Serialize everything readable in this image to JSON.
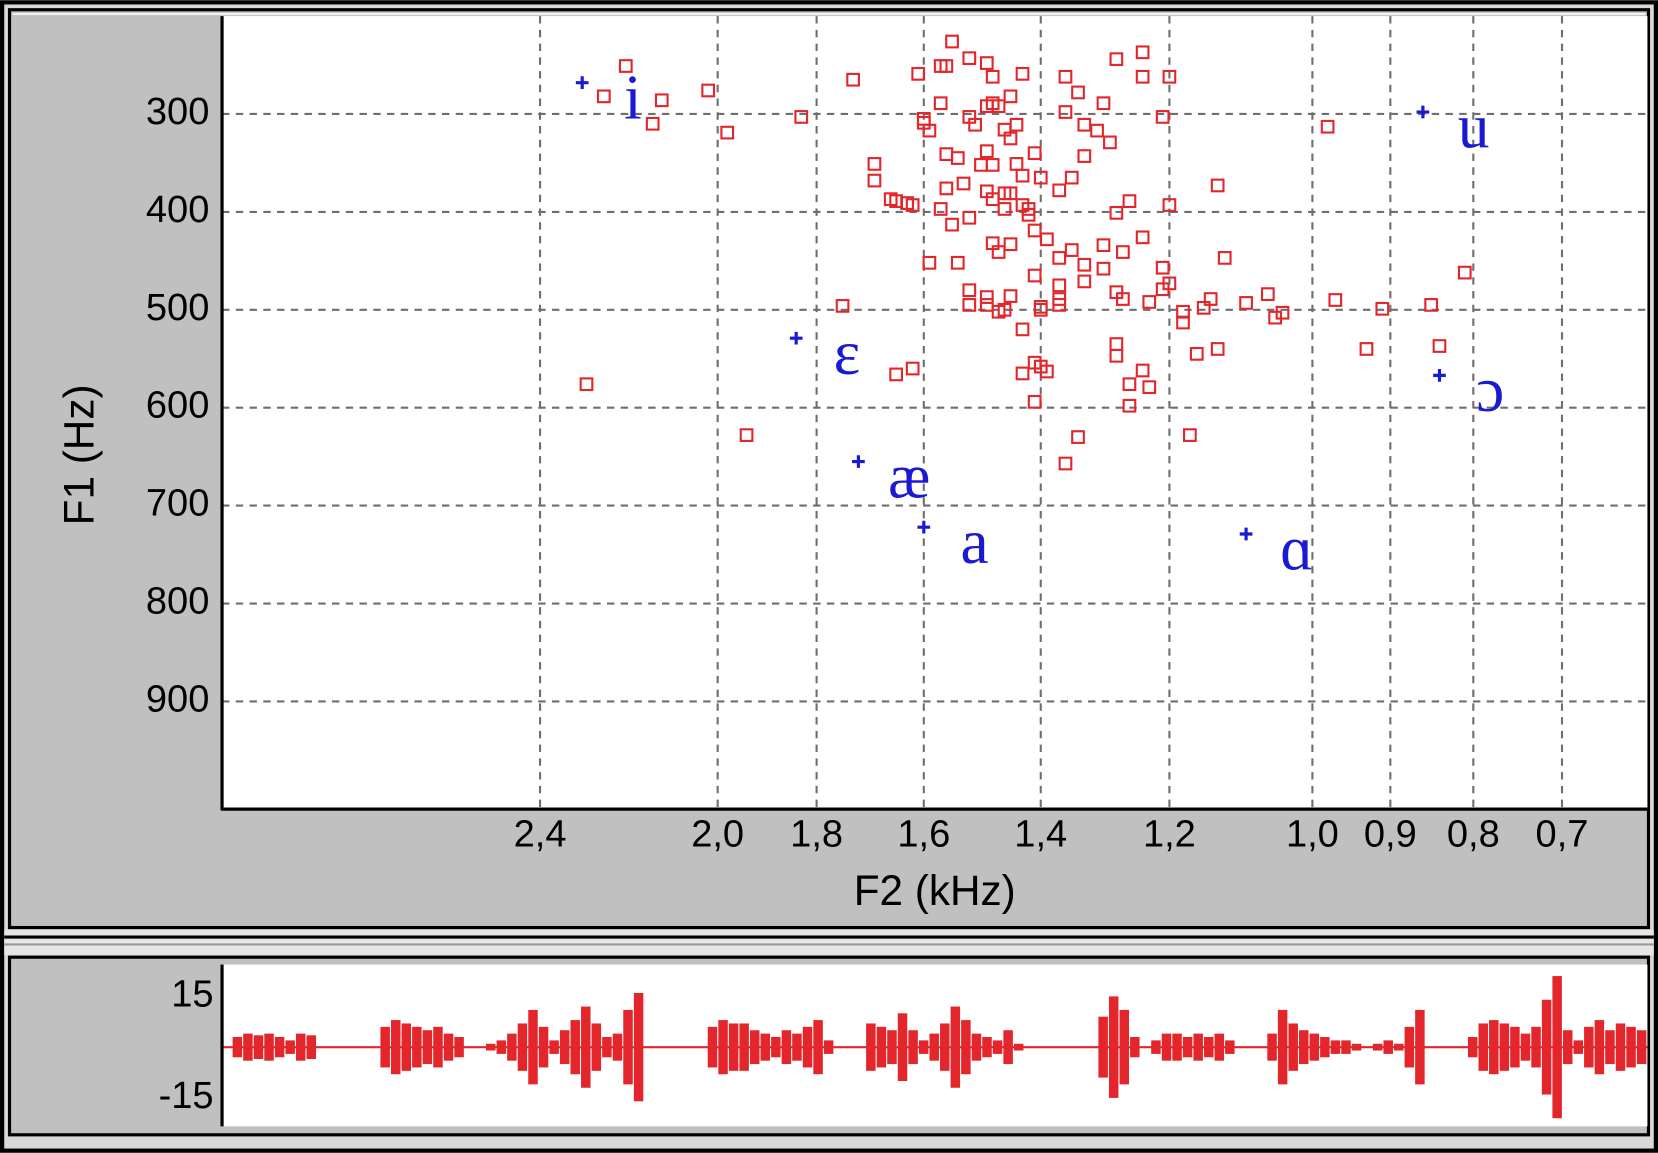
{
  "chart_data": [
    {
      "type": "scatter",
      "x_label": "F2 (kHz)",
      "y_label": "F1 (Hz)",
      "xscale": "mel",
      "xlim": [
        3.27,
        0.61
      ],
      "xticks": [
        {
          "value": 2.4,
          "label": "2,4"
        },
        {
          "value": 2.0,
          "label": "2,0"
        },
        {
          "value": 1.8,
          "label": "1,8"
        },
        {
          "value": 1.6,
          "label": "1,6"
        },
        {
          "value": 1.4,
          "label": "1,4"
        },
        {
          "value": 1.2,
          "label": "1,2"
        },
        {
          "value": 1.0,
          "label": "1,0"
        },
        {
          "value": 0.9,
          "label": "0,9"
        },
        {
          "value": 0.8,
          "label": "0,8"
        },
        {
          "value": 0.7,
          "label": "0,7"
        }
      ],
      "ylim": [
        1010,
        200
      ],
      "yticks": [
        300,
        400,
        500,
        600,
        700,
        800,
        900
      ],
      "grid": true,
      "series": [
        {
          "color": "#e3262b",
          "marker": "square",
          "x": [
            1.55,
            1.52,
            1.57,
            1.56,
            1.49,
            1.43,
            1.48,
            1.28,
            1.24,
            1.24,
            1.2,
            1.36,
            1.61,
            1.73,
            2.2,
            2.25,
            2.12,
            2.14,
            2.02,
            1.34,
            1.45,
            1.3,
            1.36,
            1.21,
            0.98,
            1.83,
            1.98,
            1.6,
            1.59,
            1.57,
            1.52,
            1.49,
            1.47,
            1.51,
            1.46,
            1.44,
            1.45,
            1.33,
            1.31,
            1.29,
            1.48,
            1.6,
            1.49,
            1.56,
            1.54,
            1.48,
            1.5,
            1.44,
            1.41,
            1.33,
            1.35,
            1.43,
            1.4,
            1.56,
            1.53,
            1.49,
            1.48,
            1.46,
            1.45,
            1.43,
            1.42,
            1.46,
            1.52,
            1.55,
            1.57,
            1.69,
            1.69,
            1.66,
            1.65,
            1.63,
            1.62,
            1.13,
            1.2,
            1.26,
            1.28,
            1.37,
            1.42,
            1.48,
            1.47,
            1.45,
            1.41,
            1.39,
            1.35,
            1.3,
            1.27,
            1.24,
            1.21,
            1.2,
            1.33,
            1.37,
            1.3,
            1.33,
            1.41,
            1.54,
            1.59,
            1.12,
            1.37,
            1.37,
            1.37,
            1.28,
            1.27,
            1.23,
            1.21,
            1.18,
            1.14,
            1.15,
            1.09,
            1.06,
            1.04,
            1.05,
            0.97,
            0.91,
            0.85,
            0.81,
            1.4,
            1.4,
            1.45,
            1.49,
            1.52,
            1.52,
            1.49,
            1.47,
            1.46,
            1.43,
            1.18,
            1.13,
            1.16,
            1.28,
            1.28,
            1.24,
            0.93,
            0.84,
            1.41,
            1.4,
            1.39,
            1.43,
            1.41,
            1.26,
            1.26,
            1.23,
            1.62,
            1.65,
            1.34,
            1.36,
            1.17,
            1.94,
            1.75,
            2.29
          ],
          "y": [
            226,
            243,
            251,
            251,
            248,
            259,
            262,
            244,
            237,
            262,
            262,
            262,
            259,
            265,
            251,
            282,
            286,
            310,
            276,
            278,
            282,
            289,
            298,
            303,
            313,
            303,
            319,
            309,
            317,
            289,
            303,
            292,
            292,
            311,
            316,
            311,
            325,
            311,
            317,
            329,
            289,
            305,
            338,
            341,
            345,
            352,
            352,
            351,
            340,
            343,
            365,
            363,
            365,
            376,
            371,
            379,
            387,
            381,
            381,
            393,
            403,
            397,
            406,
            413,
            397,
            351,
            368,
            387,
            389,
            391,
            393,
            373,
            393,
            389,
            401,
            378,
            397,
            432,
            441,
            433,
            419,
            428,
            439,
            434,
            441,
            426,
            457,
            473,
            454,
            447,
            458,
            471,
            465,
            452,
            452,
            447,
            475,
            489,
            495,
            482,
            489,
            492,
            479,
            502,
            489,
            498,
            493,
            484,
            503,
            508,
            490,
            499,
            495,
            462,
            500,
            497,
            486,
            487,
            480,
            495,
            495,
            502,
            500,
            520,
            513,
            540,
            545,
            535,
            547,
            562,
            540,
            537,
            554,
            558,
            563,
            565,
            594,
            576,
            598,
            579,
            560,
            566,
            630,
            657,
            628,
            628,
            496,
            576
          ]
        },
        {
          "color": "#1a1ad2",
          "marker": "cross",
          "x": [
            2.3,
            0.86,
            1.84,
            1.72,
            1.6,
            1.09,
            0.84
          ],
          "y": [
            268,
            298,
            529,
            655,
            722,
            729,
            567
          ],
          "labels": [
            "i",
            "u",
            "ɛ",
            "æ",
            "a",
            "ɑ",
            "ɔ"
          ]
        }
      ]
    },
    {
      "type": "waveform",
      "color": "#e3262b",
      "ylim": [
        -23.4,
        24.4
      ],
      "yticks": [
        15,
        -15
      ],
      "values": [
        0,
        3,
        4,
        3.5,
        4,
        3,
        2,
        4,
        3.5,
        0,
        0,
        0,
        0,
        0,
        0,
        6,
        8,
        7,
        6,
        5,
        6,
        4,
        3,
        0,
        0,
        1,
        2,
        4,
        7,
        11,
        6,
        2,
        5,
        8,
        12,
        7,
        3,
        4,
        11,
        16,
        0,
        0,
        0,
        0,
        0,
        0,
        6,
        8,
        7,
        7,
        5,
        4,
        3,
        5,
        4,
        6,
        8,
        2,
        0,
        0,
        0,
        7,
        6,
        5,
        10,
        5,
        2,
        4,
        7,
        12,
        8,
        4,
        3,
        2,
        5,
        1,
        0,
        0,
        0,
        0,
        0,
        0,
        0,
        9,
        15,
        11,
        3,
        0,
        2,
        4,
        4,
        3,
        4,
        3,
        4,
        2,
        0,
        0,
        0,
        4,
        11,
        7,
        5,
        4,
        3,
        2,
        2,
        1,
        0,
        1,
        2,
        1,
        6,
        11,
        0,
        0,
        0,
        0,
        3,
        7,
        8,
        7,
        6,
        4,
        6,
        14,
        21,
        5,
        2,
        6,
        8,
        5,
        7,
        6,
        5
      ]
    }
  ]
}
